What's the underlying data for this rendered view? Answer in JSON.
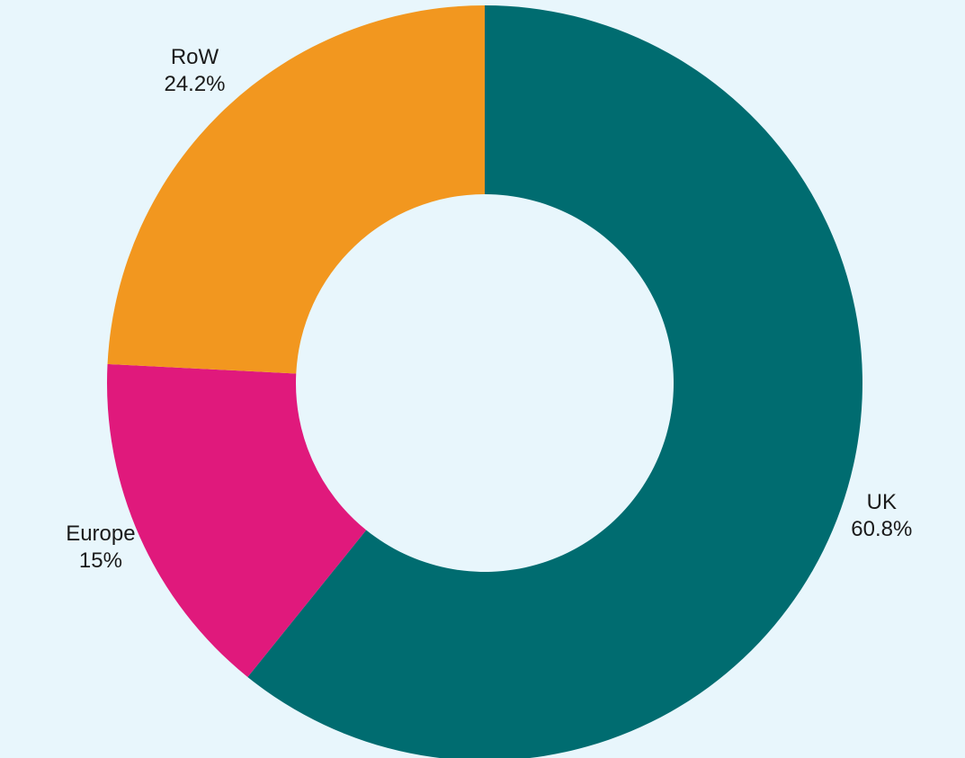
{
  "chart_data": {
    "type": "pie",
    "variant": "donut",
    "start_angle_deg": 0,
    "direction": "clockwise",
    "slices": [
      {
        "label": "UK",
        "value": 60.8,
        "display": "60.8%",
        "color": "#006c70"
      },
      {
        "label": "Europe",
        "value": 15,
        "display": "15%",
        "color": "#e0197c"
      },
      {
        "label": "RoW",
        "value": 24.2,
        "display": "24.2%",
        "color": "#f2971f"
      }
    ],
    "legend": "none",
    "background": "#e8f6fc"
  }
}
